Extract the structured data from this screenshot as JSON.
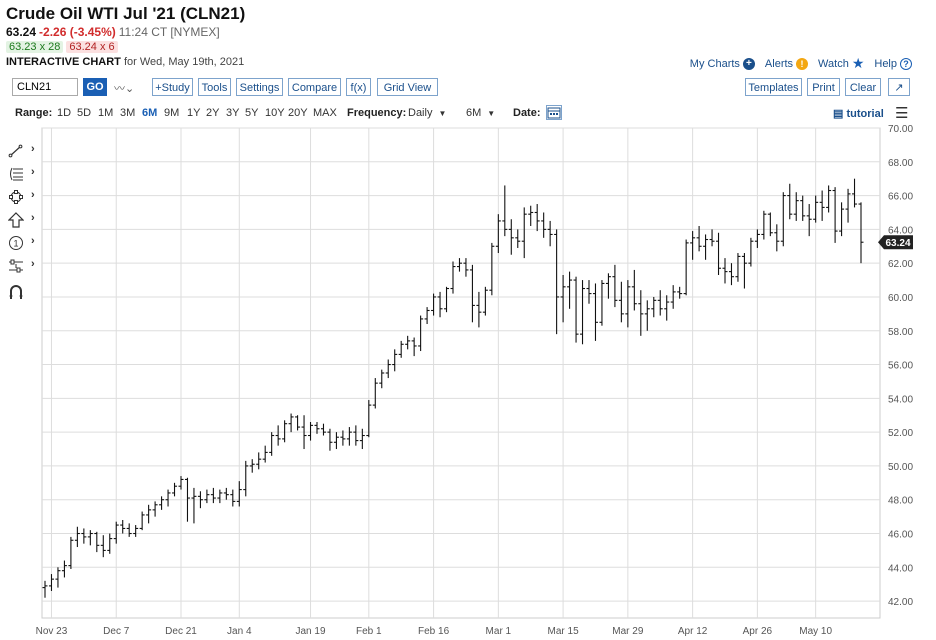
{
  "header": {
    "title": "Crude Oil WTI Jul '21 (CLN21)",
    "last": "63.24",
    "change": "-2.26 (-3.45%)",
    "time": "11:24 CT [NYMEX]",
    "bid": "63.23 x 28",
    "ask": "63.24 x 6",
    "chart_label": "INTERACTIVE CHART",
    "chart_date": "for Wed, May 19th, 2021"
  },
  "links": {
    "my_charts": "My Charts",
    "alerts": "Alerts",
    "watch": "Watch",
    "help": "Help"
  },
  "toolbar": {
    "symbol": "CLN21",
    "go": "GO",
    "study": "+Study",
    "tools": "Tools",
    "settings": "Settings",
    "compare": "Compare",
    "fx": "f(x)",
    "grid_view": "Grid View",
    "templates": "Templates",
    "print": "Print",
    "clear": "Clear"
  },
  "rangebar": {
    "range_label": "Range:",
    "ranges": [
      "1D",
      "5D",
      "1M",
      "3M",
      "6M",
      "9M",
      "1Y",
      "2Y",
      "3Y",
      "5Y",
      "10Y",
      "20Y",
      "MAX"
    ],
    "active": "6M",
    "frequency_label": "Frequency:",
    "frequency": "Daily",
    "period": "6M",
    "date_label": "Date:",
    "tutorial": "tutorial"
  },
  "sidebar_icons": [
    "line-tool-icon",
    "fibonacci-tool-icon",
    "shape-tool-icon",
    "arrow-tool-icon",
    "numbered-marker-icon",
    "measure-tool-icon",
    "magnet-icon"
  ],
  "colors": {
    "bars": "#111111",
    "grid": "#dddddd",
    "last_price_tag": "#222222",
    "change_negative": "#d12c2c",
    "link_blue": "#1a4f8b"
  },
  "chart_data": {
    "type": "ohlc",
    "ylim": [
      41.0,
      70.0
    ],
    "y_ticks": [
      42,
      44,
      46,
      48,
      50,
      52,
      54,
      56,
      58,
      60,
      62,
      64,
      66,
      68,
      70
    ],
    "y_tick_labels": [
      "42.00",
      "44.00",
      "46.00",
      "48.00",
      "50.00",
      "52.00",
      "54.00",
      "56.00",
      "58.00",
      "60.00",
      "62.00",
      "64.00",
      "66.00",
      "68.00",
      "70.00"
    ],
    "x_labels": [
      "Nov 23",
      "Dec 7",
      "Dec 21",
      "Jan 4",
      "Jan 19",
      "Feb 1",
      "Feb 16",
      "Mar 1",
      "Mar 15",
      "Mar 29",
      "Apr 12",
      "Apr 26",
      "May 10"
    ],
    "last_price": "63.24",
    "bars": [
      {
        "o": 42.8,
        "h": 43.2,
        "l": 42.2,
        "c": 42.9
      },
      {
        "o": 42.9,
        "h": 43.6,
        "l": 42.6,
        "c": 43.3
      },
      {
        "o": 43.3,
        "h": 44.0,
        "l": 42.8,
        "c": 43.8
      },
      {
        "o": 43.8,
        "h": 44.4,
        "l": 43.4,
        "c": 44.1
      },
      {
        "o": 44.1,
        "h": 45.8,
        "l": 43.9,
        "c": 45.6
      },
      {
        "o": 45.6,
        "h": 46.4,
        "l": 45.2,
        "c": 46.0
      },
      {
        "o": 46.0,
        "h": 46.3,
        "l": 45.4,
        "c": 45.8
      },
      {
        "o": 45.8,
        "h": 46.2,
        "l": 45.3,
        "c": 46.0
      },
      {
        "o": 46.0,
        "h": 46.1,
        "l": 44.9,
        "c": 45.3
      },
      {
        "o": 45.3,
        "h": 45.9,
        "l": 44.6,
        "c": 45.0
      },
      {
        "o": 45.0,
        "h": 46.0,
        "l": 44.8,
        "c": 45.7
      },
      {
        "o": 45.7,
        "h": 46.7,
        "l": 45.4,
        "c": 46.5
      },
      {
        "o": 46.5,
        "h": 46.8,
        "l": 46.0,
        "c": 46.3
      },
      {
        "o": 46.3,
        "h": 46.6,
        "l": 45.8,
        "c": 46.0
      },
      {
        "o": 46.0,
        "h": 46.5,
        "l": 45.8,
        "c": 46.3
      },
      {
        "o": 46.3,
        "h": 47.3,
        "l": 46.2,
        "c": 47.1
      },
      {
        "o": 47.1,
        "h": 47.7,
        "l": 46.6,
        "c": 47.4
      },
      {
        "o": 47.4,
        "h": 47.9,
        "l": 47.0,
        "c": 47.7
      },
      {
        "o": 47.7,
        "h": 48.2,
        "l": 47.4,
        "c": 48.0
      },
      {
        "o": 48.0,
        "h": 48.6,
        "l": 47.6,
        "c": 48.4
      },
      {
        "o": 48.4,
        "h": 49.0,
        "l": 48.2,
        "c": 48.8
      },
      {
        "o": 48.8,
        "h": 49.4,
        "l": 48.6,
        "c": 49.2
      },
      {
        "o": 49.2,
        "h": 49.3,
        "l": 46.7,
        "c": 48.1
      },
      {
        "o": 48.1,
        "h": 48.7,
        "l": 46.6,
        "c": 48.2
      },
      {
        "o": 48.2,
        "h": 48.5,
        "l": 47.5,
        "c": 48.0
      },
      {
        "o": 48.0,
        "h": 48.6,
        "l": 47.8,
        "c": 48.3
      },
      {
        "o": 48.3,
        "h": 48.7,
        "l": 47.8,
        "c": 48.1
      },
      {
        "o": 48.1,
        "h": 48.6,
        "l": 47.8,
        "c": 48.4
      },
      {
        "o": 48.4,
        "h": 48.7,
        "l": 48.0,
        "c": 48.3
      },
      {
        "o": 48.3,
        "h": 48.6,
        "l": 47.6,
        "c": 47.9
      },
      {
        "o": 47.9,
        "h": 49.1,
        "l": 47.6,
        "c": 48.6
      },
      {
        "o": 48.6,
        "h": 50.3,
        "l": 48.2,
        "c": 50.0
      },
      {
        "o": 50.0,
        "h": 50.4,
        "l": 49.6,
        "c": 50.1
      },
      {
        "o": 50.1,
        "h": 50.8,
        "l": 49.8,
        "c": 50.4
      },
      {
        "o": 50.4,
        "h": 51.2,
        "l": 50.2,
        "c": 50.8
      },
      {
        "o": 50.8,
        "h": 52.0,
        "l": 50.6,
        "c": 51.8
      },
      {
        "o": 51.8,
        "h": 52.4,
        "l": 51.2,
        "c": 51.6
      },
      {
        "o": 51.6,
        "h": 52.7,
        "l": 51.4,
        "c": 52.5
      },
      {
        "o": 52.5,
        "h": 53.1,
        "l": 52.0,
        "c": 52.9
      },
      {
        "o": 52.9,
        "h": 53.0,
        "l": 52.1,
        "c": 52.3
      },
      {
        "o": 52.3,
        "h": 53.0,
        "l": 51.0,
        "c": 51.8
      },
      {
        "o": 51.8,
        "h": 52.6,
        "l": 51.5,
        "c": 52.4
      },
      {
        "o": 52.4,
        "h": 52.6,
        "l": 51.9,
        "c": 52.2
      },
      {
        "o": 52.2,
        "h": 52.5,
        "l": 51.8,
        "c": 52.0
      },
      {
        "o": 52.0,
        "h": 52.2,
        "l": 50.9,
        "c": 51.4
      },
      {
        "o": 51.4,
        "h": 52.0,
        "l": 51.0,
        "c": 51.7
      },
      {
        "o": 51.7,
        "h": 52.1,
        "l": 51.2,
        "c": 51.6
      },
      {
        "o": 51.6,
        "h": 52.3,
        "l": 51.2,
        "c": 52.0
      },
      {
        "o": 52.0,
        "h": 52.4,
        "l": 51.2,
        "c": 51.5
      },
      {
        "o": 51.5,
        "h": 52.2,
        "l": 51.0,
        "c": 51.8
      },
      {
        "o": 51.8,
        "h": 53.9,
        "l": 51.7,
        "c": 53.6
      },
      {
        "o": 53.6,
        "h": 55.2,
        "l": 53.4,
        "c": 54.9
      },
      {
        "o": 54.9,
        "h": 55.7,
        "l": 54.6,
        "c": 55.5
      },
      {
        "o": 55.5,
        "h": 56.3,
        "l": 55.2,
        "c": 56.0
      },
      {
        "o": 56.0,
        "h": 56.9,
        "l": 55.6,
        "c": 56.6
      },
      {
        "o": 56.6,
        "h": 57.4,
        "l": 56.4,
        "c": 57.2
      },
      {
        "o": 57.2,
        "h": 57.7,
        "l": 56.9,
        "c": 57.4
      },
      {
        "o": 57.4,
        "h": 57.6,
        "l": 56.5,
        "c": 57.1
      },
      {
        "o": 57.1,
        "h": 58.9,
        "l": 56.8,
        "c": 58.7
      },
      {
        "o": 58.7,
        "h": 59.4,
        "l": 58.4,
        "c": 59.2
      },
      {
        "o": 59.2,
        "h": 60.2,
        "l": 58.9,
        "c": 60.0
      },
      {
        "o": 60.0,
        "h": 60.3,
        "l": 58.8,
        "c": 59.3
      },
      {
        "o": 59.3,
        "h": 60.6,
        "l": 59.1,
        "c": 60.5
      },
      {
        "o": 60.5,
        "h": 62.1,
        "l": 60.2,
        "c": 61.8
      },
      {
        "o": 61.8,
        "h": 62.3,
        "l": 61.5,
        "c": 62.0
      },
      {
        "o": 62.0,
        "h": 62.3,
        "l": 61.2,
        "c": 61.6
      },
      {
        "o": 61.6,
        "h": 61.9,
        "l": 58.5,
        "c": 59.5
      },
      {
        "o": 59.5,
        "h": 60.3,
        "l": 58.2,
        "c": 59.1
      },
      {
        "o": 59.1,
        "h": 60.6,
        "l": 58.9,
        "c": 60.4
      },
      {
        "o": 60.4,
        "h": 63.2,
        "l": 60.1,
        "c": 63.0
      },
      {
        "o": 63.0,
        "h": 64.9,
        "l": 62.6,
        "c": 64.5
      },
      {
        "o": 64.5,
        "h": 66.6,
        "l": 63.6,
        "c": 64.0
      },
      {
        "o": 64.0,
        "h": 64.6,
        "l": 62.5,
        "c": 63.5
      },
      {
        "o": 63.5,
        "h": 64.0,
        "l": 62.9,
        "c": 63.3
      },
      {
        "o": 63.3,
        "h": 65.3,
        "l": 62.3,
        "c": 64.9
      },
      {
        "o": 64.9,
        "h": 65.4,
        "l": 64.2,
        "c": 65.0
      },
      {
        "o": 65.0,
        "h": 65.5,
        "l": 63.9,
        "c": 64.5
      },
      {
        "o": 64.5,
        "h": 65.0,
        "l": 63.5,
        "c": 64.0
      },
      {
        "o": 64.0,
        "h": 64.5,
        "l": 63.0,
        "c": 63.7
      },
      {
        "o": 63.7,
        "h": 64.0,
        "l": 57.8,
        "c": 60.0
      },
      {
        "o": 60.0,
        "h": 61.3,
        "l": 58.5,
        "c": 60.6
      },
      {
        "o": 60.6,
        "h": 61.5,
        "l": 59.3,
        "c": 61.0
      },
      {
        "o": 61.0,
        "h": 61.2,
        "l": 57.3,
        "c": 57.8
      },
      {
        "o": 57.8,
        "h": 61.0,
        "l": 57.2,
        "c": 60.5
      },
      {
        "o": 60.5,
        "h": 61.0,
        "l": 59.6,
        "c": 60.2
      },
      {
        "o": 60.2,
        "h": 60.8,
        "l": 57.4,
        "c": 58.5
      },
      {
        "o": 58.5,
        "h": 61.0,
        "l": 58.3,
        "c": 60.8
      },
      {
        "o": 60.8,
        "h": 61.4,
        "l": 59.9,
        "c": 61.2
      },
      {
        "o": 61.2,
        "h": 61.9,
        "l": 59.4,
        "c": 59.8
      },
      {
        "o": 59.8,
        "h": 60.9,
        "l": 58.5,
        "c": 59.0
      },
      {
        "o": 59.0,
        "h": 61.0,
        "l": 58.2,
        "c": 60.6
      },
      {
        "o": 60.6,
        "h": 61.6,
        "l": 59.2,
        "c": 59.6
      },
      {
        "o": 59.6,
        "h": 60.4,
        "l": 57.7,
        "c": 59.0
      },
      {
        "o": 59.0,
        "h": 59.8,
        "l": 58.0,
        "c": 59.3
      },
      {
        "o": 59.3,
        "h": 60.0,
        "l": 58.8,
        "c": 59.8
      },
      {
        "o": 59.8,
        "h": 60.4,
        "l": 58.9,
        "c": 59.3
      },
      {
        "o": 59.3,
        "h": 60.1,
        "l": 58.6,
        "c": 59.7
      },
      {
        "o": 59.7,
        "h": 60.7,
        "l": 59.3,
        "c": 60.3
      },
      {
        "o": 60.3,
        "h": 60.6,
        "l": 59.9,
        "c": 60.2
      },
      {
        "o": 60.2,
        "h": 63.4,
        "l": 60.1,
        "c": 63.2
      },
      {
        "o": 63.2,
        "h": 63.9,
        "l": 62.2,
        "c": 63.5
      },
      {
        "o": 63.5,
        "h": 64.2,
        "l": 62.7,
        "c": 63.0
      },
      {
        "o": 63.0,
        "h": 63.7,
        "l": 62.2,
        "c": 63.4
      },
      {
        "o": 63.4,
        "h": 64.0,
        "l": 63.0,
        "c": 63.3
      },
      {
        "o": 63.3,
        "h": 63.8,
        "l": 61.3,
        "c": 61.7
      },
      {
        "o": 61.7,
        "h": 62.3,
        "l": 60.8,
        "c": 61.5
      },
      {
        "o": 61.5,
        "h": 62.0,
        "l": 60.7,
        "c": 61.2
      },
      {
        "o": 61.2,
        "h": 62.6,
        "l": 60.9,
        "c": 62.4
      },
      {
        "o": 62.4,
        "h": 62.6,
        "l": 60.5,
        "c": 62.0
      },
      {
        "o": 62.0,
        "h": 63.5,
        "l": 61.8,
        "c": 63.3
      },
      {
        "o": 63.3,
        "h": 64.0,
        "l": 62.9,
        "c": 63.7
      },
      {
        "o": 63.7,
        "h": 65.1,
        "l": 63.4,
        "c": 64.9
      },
      {
        "o": 64.9,
        "h": 65.0,
        "l": 63.6,
        "c": 63.8
      },
      {
        "o": 63.8,
        "h": 64.3,
        "l": 62.7,
        "c": 63.3
      },
      {
        "o": 63.3,
        "h": 66.2,
        "l": 63.0,
        "c": 66.0
      },
      {
        "o": 66.0,
        "h": 66.7,
        "l": 64.6,
        "c": 64.9
      },
      {
        "o": 64.9,
        "h": 66.2,
        "l": 64.5,
        "c": 65.7
      },
      {
        "o": 65.7,
        "h": 66.0,
        "l": 64.5,
        "c": 64.8
      },
      {
        "o": 64.8,
        "h": 65.5,
        "l": 63.6,
        "c": 64.6
      },
      {
        "o": 64.6,
        "h": 66.0,
        "l": 64.4,
        "c": 65.6
      },
      {
        "o": 65.6,
        "h": 66.3,
        "l": 64.5,
        "c": 65.3
      },
      {
        "o": 65.3,
        "h": 66.6,
        "l": 65.0,
        "c": 66.3
      },
      {
        "o": 66.3,
        "h": 66.5,
        "l": 63.2,
        "c": 63.9
      },
      {
        "o": 63.9,
        "h": 65.6,
        "l": 63.6,
        "c": 65.2
      },
      {
        "o": 65.2,
        "h": 66.4,
        "l": 64.4,
        "c": 66.1
      },
      {
        "o": 66.1,
        "h": 67.0,
        "l": 65.3,
        "c": 65.5
      },
      {
        "o": 65.5,
        "h": 65.6,
        "l": 62.0,
        "c": 63.24
      }
    ]
  }
}
